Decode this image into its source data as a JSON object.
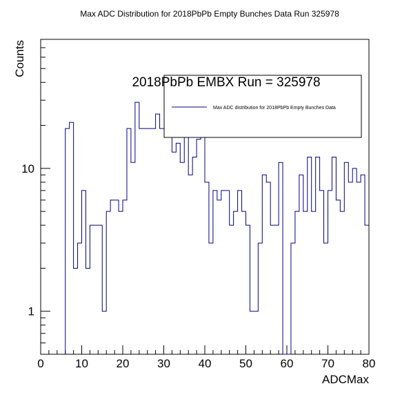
{
  "chart_data": {
    "type": "histogram",
    "title": "Max ADC Distribution for 2018PbPb Empty Bunches Data Run 325978",
    "xlabel": "ADCMax",
    "ylabel": "Counts",
    "xlim": [
      0,
      80
    ],
    "ylim": [
      0.5,
      80
    ],
    "yscale": "log",
    "grid": false,
    "x_ticks": [
      "0",
      "10",
      "20",
      "30",
      "40",
      "50",
      "60",
      "70",
      "80"
    ],
    "y_ticks": [
      "1",
      "10"
    ],
    "bin_width": 1,
    "bin_start": 6,
    "counts": [
      19,
      21,
      2,
      3,
      7,
      2,
      4,
      4,
      4,
      1,
      5,
      6,
      6,
      5,
      6,
      19,
      11,
      29,
      19,
      19,
      19,
      19,
      24,
      19,
      19,
      17,
      13,
      15,
      11,
      17,
      9,
      12,
      16,
      19,
      8,
      3,
      7,
      6,
      7,
      7,
      4,
      5,
      7,
      5,
      4,
      1,
      1,
      3,
      9,
      8,
      4,
      4,
      11,
      0,
      0,
      3,
      5,
      9,
      5,
      12,
      5,
      12,
      7,
      3,
      7,
      12,
      6,
      5,
      11,
      8,
      10,
      8,
      9,
      4
    ],
    "series_color": "#000080",
    "stats_box": {
      "title": "2018PbPb EMBX Run = 325978",
      "legend_label": "Max ADC distribution for 2018PbPb Empty Bunches Data"
    }
  }
}
